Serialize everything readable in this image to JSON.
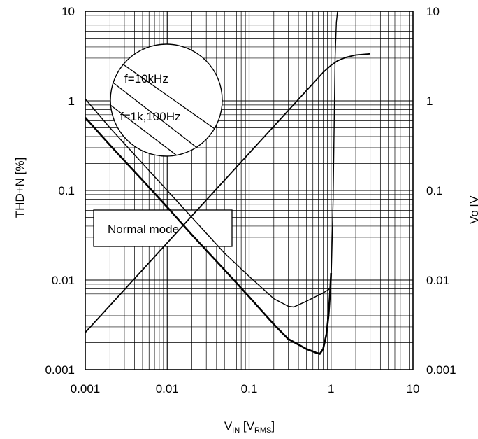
{
  "chart_data": {
    "type": "line",
    "xlabel": {
      "main": "V",
      "sub": "IN",
      "unit_open": " [V",
      "unit_sub": "RMS",
      "unit_close": "]"
    },
    "ylabel_left": "THD+N [%]",
    "ylabel_right": "Vo [V",
    "x_scale": "log",
    "y_scale": "log",
    "xlim": [
      0.001,
      10
    ],
    "ylim": [
      0.001,
      10
    ],
    "x_ticks": [
      "0.001",
      "0.01",
      "0.1",
      "1",
      "10"
    ],
    "y_ticks": [
      "10",
      "1",
      "0.1",
      "0.01",
      "0.001"
    ],
    "y_ticks_right": [
      "10",
      "1",
      "0.1",
      "0.01",
      "0.001"
    ],
    "grid": true,
    "annotations": {
      "box_label": "Normal mode",
      "circle_label_1": "f=10kHz",
      "circle_label_2": "f=1k,100Hz"
    },
    "series": [
      {
        "role": "thd_10khz",
        "x": [
          0.001,
          0.002,
          0.005,
          0.01,
          0.02,
          0.05,
          0.1,
          0.2,
          0.3,
          0.35,
          0.5,
          0.8,
          0.93,
          0.97,
          1.0,
          1.06,
          1.12,
          1.16,
          1.2
        ],
        "y": [
          1.05,
          0.5,
          0.2,
          0.1,
          0.05,
          0.02,
          0.011,
          0.0062,
          0.0051,
          0.005,
          0.0058,
          0.0072,
          0.0078,
          0.0082,
          0.0095,
          0.08,
          3.0,
          7.5,
          10
        ]
      },
      {
        "role": "thd_1k_100hz",
        "x": [
          0.001,
          0.002,
          0.005,
          0.01,
          0.02,
          0.05,
          0.1,
          0.2,
          0.3,
          0.5,
          0.65,
          0.73,
          0.8,
          0.88,
          0.93,
          0.97,
          1.0
        ],
        "y": [
          0.65,
          0.32,
          0.13,
          0.065,
          0.032,
          0.013,
          0.0065,
          0.0032,
          0.0022,
          0.0017,
          0.00155,
          0.0015,
          0.0017,
          0.0025,
          0.004,
          0.007,
          0.012
        ]
      },
      {
        "role": "vo",
        "x": [
          0.001,
          0.002,
          0.005,
          0.01,
          0.02,
          0.05,
          0.1,
          0.2,
          0.5,
          0.8,
          1.0,
          1.2,
          1.5,
          2.0,
          3.0
        ],
        "y": [
          0.0026,
          0.0052,
          0.013,
          0.026,
          0.052,
          0.13,
          0.26,
          0.52,
          1.3,
          2.08,
          2.5,
          2.8,
          3.05,
          3.25,
          3.35
        ]
      }
    ]
  }
}
